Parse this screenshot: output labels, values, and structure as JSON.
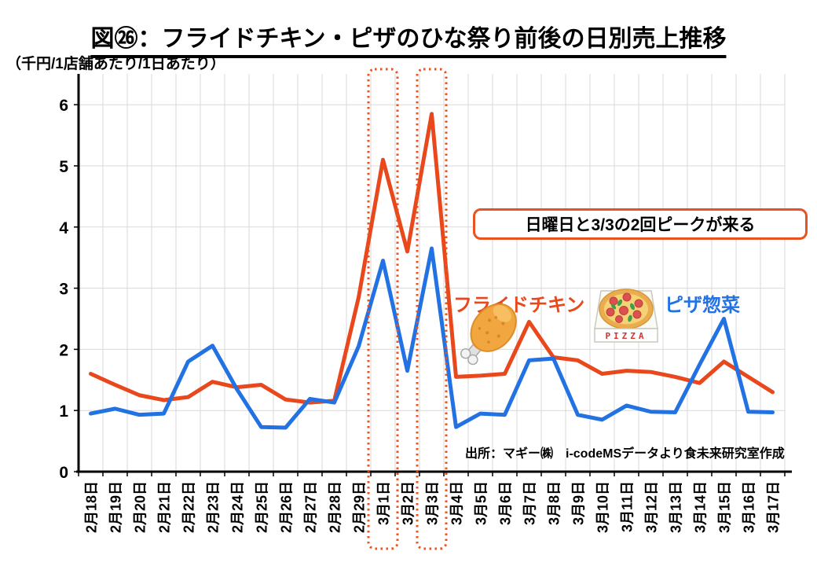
{
  "title": "図㉖：フライドチキン・ピザのひな祭り前後の日別売上推移",
  "unit_label": "（千円/1店舗あたり/1日あたり）",
  "annotation": "日曜日と3/3の2回ピークが来る",
  "source": "出所：マギー㈱　i-codeMSデータより食未来研究室作成",
  "legend": {
    "chicken": "フライドチキン",
    "pizza": "ピザ惣菜"
  },
  "pizza_icon_label": "PIZZA",
  "colors": {
    "chicken_line": "#E8481C",
    "pizza_line": "#2272E3",
    "highlight": "#E8531F",
    "grid": "#D9D9D9",
    "axis": "#000000"
  },
  "chart_data": {
    "type": "line",
    "title": "図㉖：フライドチキン・ピザのひな祭り前後の日別売上推移",
    "ylabel": "（千円/1店舗あたり/1日あたり）",
    "ylim": [
      0,
      6.5
    ],
    "yticks": [
      0,
      1,
      2,
      3,
      4,
      5,
      6
    ],
    "grid": true,
    "legend_position": "inline-labels",
    "categories": [
      "2月18日",
      "2月19日",
      "2月20日",
      "2月21日",
      "2月22日",
      "2月23日",
      "2月24日",
      "2月25日",
      "2月26日",
      "2月27日",
      "2月28日",
      "2月29日",
      "3月1日",
      "3月2日",
      "3月3日",
      "3月4日",
      "3月5日",
      "3月6日",
      "3月7日",
      "3月8日",
      "3月9日",
      "3月10日",
      "3月11日",
      "3月12日",
      "3月13日",
      "3月14日",
      "3月15日",
      "3月16日",
      "3月17日"
    ],
    "series": [
      {
        "name": "フライドチキン",
        "color": "#E8481C",
        "values": [
          1.6,
          1.42,
          1.25,
          1.17,
          1.22,
          1.47,
          1.38,
          1.42,
          1.18,
          1.13,
          1.16,
          2.85,
          5.1,
          3.6,
          5.85,
          1.55,
          1.57,
          1.6,
          2.45,
          1.87,
          1.82,
          1.6,
          1.65,
          1.63,
          1.55,
          1.45,
          1.8,
          1.55,
          1.3
        ]
      },
      {
        "name": "ピザ惣菜",
        "color": "#2272E3",
        "values": [
          0.95,
          1.03,
          0.93,
          0.95,
          1.8,
          2.06,
          1.35,
          0.73,
          0.72,
          1.19,
          1.13,
          2.05,
          3.45,
          1.65,
          3.65,
          0.73,
          0.95,
          0.93,
          1.82,
          1.85,
          0.93,
          0.85,
          1.08,
          0.98,
          0.97,
          1.75,
          2.5,
          0.98,
          0.97
        ]
      }
    ],
    "highlight_boxes": [
      "3月1日",
      "3月3日"
    ],
    "annotation": "日曜日と3/3の2回ピークが来る"
  }
}
